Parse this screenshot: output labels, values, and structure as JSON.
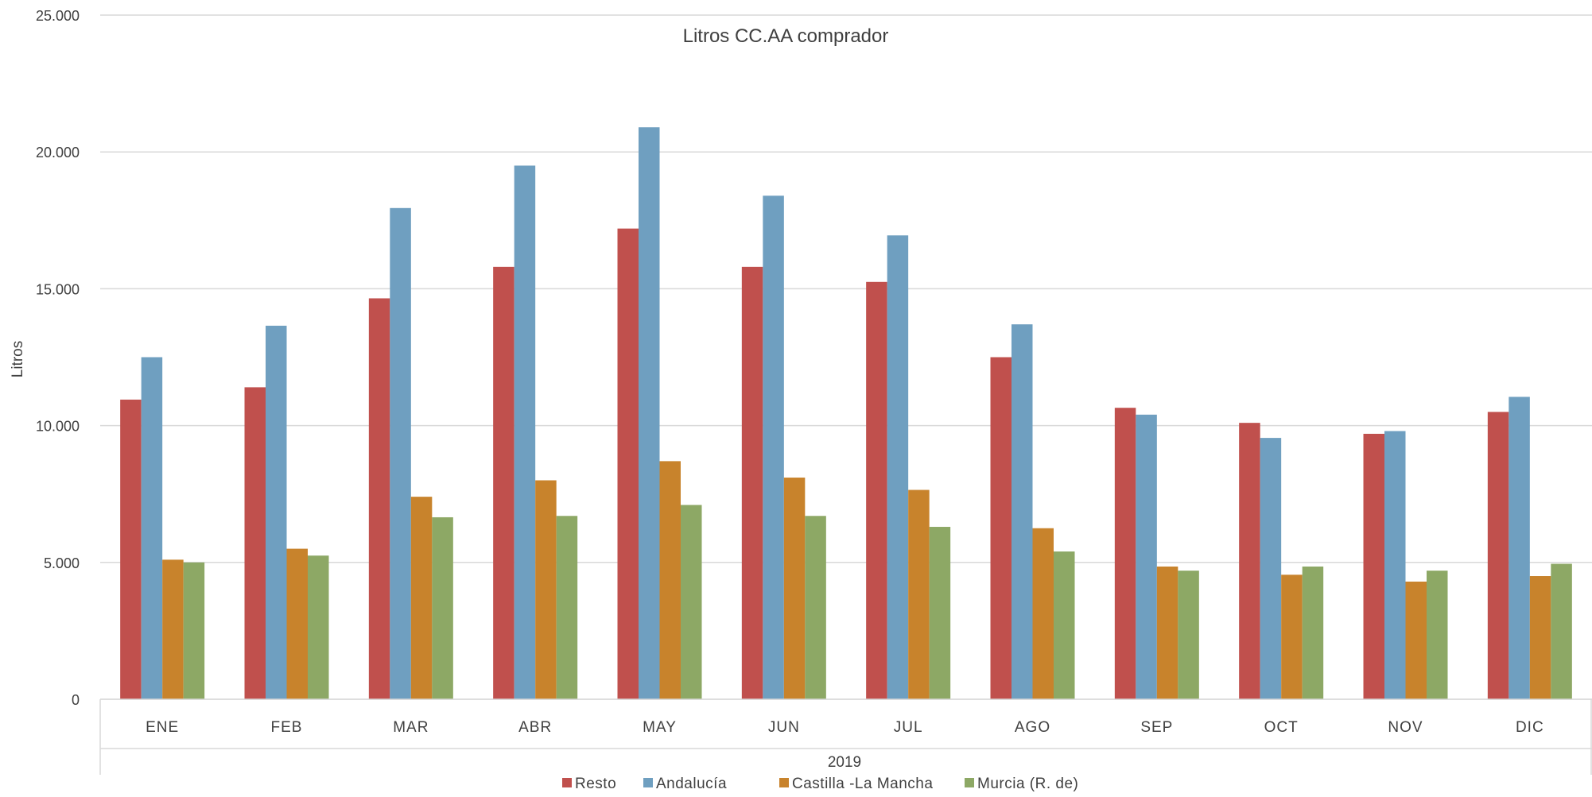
{
  "chart_data": {
    "type": "bar",
    "title": "Litros CC.AA comprador",
    "ylabel": "Litros",
    "xlabel": "2019",
    "ylim": [
      0,
      25000
    ],
    "yticks": [
      0,
      5000,
      10000,
      15000,
      20000,
      25000
    ],
    "ytick_labels": [
      "0",
      "5.000",
      "10.000",
      "15.000",
      "20.000",
      "25.000"
    ],
    "categories": [
      "ENE",
      "FEB",
      "MAR",
      "ABR",
      "MAY",
      "JUN",
      "JUL",
      "AGO",
      "SEP",
      "OCT",
      "NOV",
      "DIC"
    ],
    "grid": true,
    "legend_position": "bottom",
    "series": [
      {
        "name": "Resto",
        "color": "#C0504D",
        "values": [
          10950,
          11400,
          14650,
          15800,
          17200,
          15800,
          15250,
          12500,
          10650,
          10100,
          9700,
          10500
        ]
      },
      {
        "name": "Andalucía",
        "color": "#6F9FC0",
        "values": [
          12500,
          13650,
          17950,
          19500,
          20900,
          18400,
          16950,
          13700,
          10400,
          9550,
          9800,
          11050
        ]
      },
      {
        "name": "Castilla -La Mancha",
        "color": "#C8832C",
        "values": [
          5100,
          5500,
          7400,
          8000,
          8700,
          8100,
          7650,
          6250,
          4850,
          4550,
          4300,
          4500
        ]
      },
      {
        "name": "Murcia (R. de)",
        "color": "#8DA865",
        "values": [
          5000,
          5250,
          6650,
          6700,
          7100,
          6700,
          6300,
          5400,
          4700,
          4850,
          4700,
          4950
        ]
      }
    ]
  }
}
